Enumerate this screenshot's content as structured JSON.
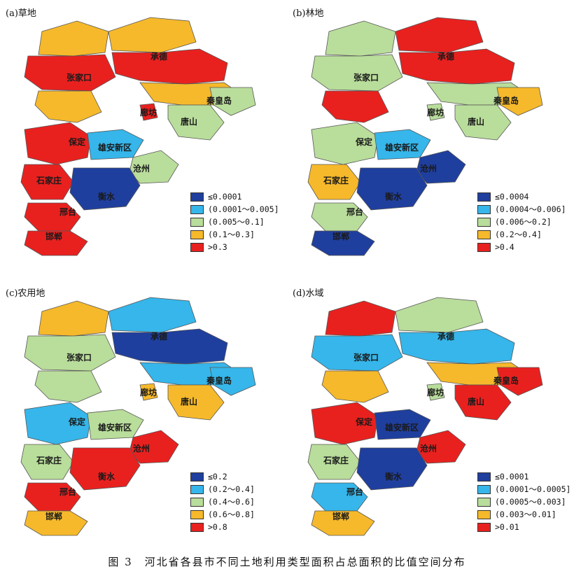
{
  "caption": "图 3　河北省各县市不同土地利用类型面积占总面积的比值空间分布",
  "colors": {
    "c1": "#1f3f9e",
    "c2": "#36b6ea",
    "c3": "#b9dd9b",
    "c4": "#f6b92b",
    "c5": "#e8211f"
  },
  "panels": {
    "a": {
      "title": "(a)草地",
      "legend": [
        "≤0.0001",
        "(0.0001～0.005]",
        "(0.005～0.1]",
        "(0.1～0.3]",
        ">0.3"
      ],
      "labels": [
        "张家口",
        "承德",
        "廊坊",
        "唐山",
        "秦皇岛",
        "保定",
        "雄安新区",
        "沧州",
        "石家庄",
        "衡水",
        "邢台",
        "邯郸"
      ]
    },
    "b": {
      "title": "(b)林地",
      "legend": [
        "≤0.0004",
        "(0.0004～0.006]",
        "(0.006～0.2]",
        "(0.2～0.4]",
        ">0.4"
      ],
      "labels": [
        "张家口",
        "承德",
        "廊坊",
        "唐山",
        "秦皇岛",
        "保定",
        "雄安新区",
        "沧州",
        "石家庄",
        "衡水",
        "邢台",
        "邯郸"
      ]
    },
    "c": {
      "title": "(c)农用地",
      "legend": [
        "≤0.2",
        "(0.2～0.4]",
        "(0.4～0.6]",
        "(0.6～0.8]",
        ">0.8"
      ],
      "labels": [
        "张家口",
        "承德",
        "廊坊",
        "唐山",
        "秦皇岛",
        "保定",
        "雄安新区",
        "沧州",
        "石家庄",
        "衡水",
        "邢台",
        "邯郸"
      ]
    },
    "d": {
      "title": "(d)水域",
      "legend": [
        "≤0.0001",
        "(0.0001～0.0005]",
        "(0.0005～0.003]",
        "(0.003～0.01]",
        ">0.01"
      ],
      "labels": [
        "张家口",
        "承德",
        "廊坊",
        "唐山",
        "秦皇岛",
        "保定",
        "雄安新区",
        "沧州",
        "石家庄",
        "衡水",
        "邢台",
        "邯郸"
      ]
    }
  }
}
